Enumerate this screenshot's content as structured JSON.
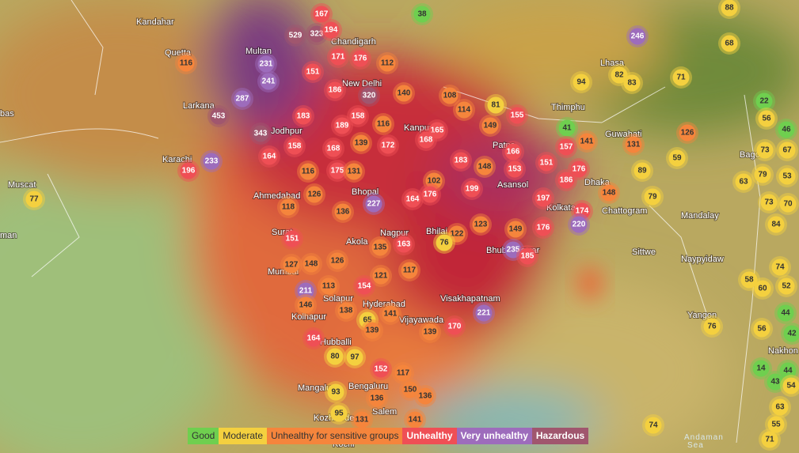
{
  "places": [
    "Kandahar",
    "Quetta",
    "Multan",
    "Chandigarh",
    "Larkana",
    "bas",
    "Jodhpur",
    "New Delhi",
    "Lhasa",
    "Thimphu",
    "Kanpur",
    "Patna",
    "Guwahati",
    "Karachi",
    "Muscat",
    "Ahmedabad",
    "Bhopal",
    "Asansol",
    "Dhaka",
    "Kolkata",
    "Chattogram",
    "Mandalay",
    "Surat",
    "Akola",
    "Nagpur",
    "Bhilai",
    "Bhubaneswar",
    "Sittwe",
    "Naypyidaw",
    "Mumbai",
    "Solapur",
    "Hyderabad",
    "Visakhapatnam",
    "Kolhapur",
    "Vijayawada",
    "Yangon",
    "Hubballi",
    "Nakhon",
    "Mangaluru",
    "Bengaluru",
    "Salem",
    "Kozhikode",
    "Kochi",
    "man",
    "Bago",
    "Andaman",
    "Sea"
  ],
  "markers": [
    38,
    167,
    88,
    246,
    68,
    529,
    323,
    194,
    116,
    231,
    171,
    176,
    112,
    94,
    82,
    83,
    71,
    241,
    151,
    186,
    320,
    140,
    108,
    287,
    81,
    114,
    22,
    453,
    183,
    158,
    155,
    56,
    46,
    189,
    116,
    165,
    149,
    41,
    343,
    126,
    168,
    139,
    172,
    141,
    131,
    73,
    67,
    158,
    168,
    166,
    157,
    59,
    164,
    233,
    183,
    148,
    153,
    151,
    176,
    79,
    53,
    196,
    116,
    175,
    131,
    89,
    63,
    102,
    186,
    199,
    126,
    176,
    164,
    148,
    79,
    73,
    70,
    227,
    197,
    118,
    136,
    174,
    84,
    77,
    123,
    220,
    122,
    149,
    176,
    151,
    76,
    135,
    163,
    235,
    185,
    127,
    148,
    126,
    121,
    117,
    74,
    58,
    60,
    52,
    113,
    154,
    211,
    146,
    138,
    141,
    221,
    44,
    56,
    42,
    76,
    65,
    139,
    139,
    170,
    164,
    80,
    97,
    14,
    44,
    152,
    117,
    43,
    54,
    93,
    150,
    136,
    136,
    63,
    95,
    131,
    141,
    74,
    55,
    71
  ],
  "legend": [
    {
      "label": "Good",
      "color": "#6fcf4f"
    },
    {
      "label": "Moderate",
      "color": "#f4d03f"
    },
    {
      "label": "Unhealthy for sensitive groups",
      "color": "#f5853c"
    },
    {
      "label": "Unhealthy",
      "color": "#ef4f55"
    },
    {
      "label": "Very unhealthy",
      "color": "#9d6cbc"
    },
    {
      "label": "Hazardous",
      "color": "#a0566e"
    }
  ]
}
